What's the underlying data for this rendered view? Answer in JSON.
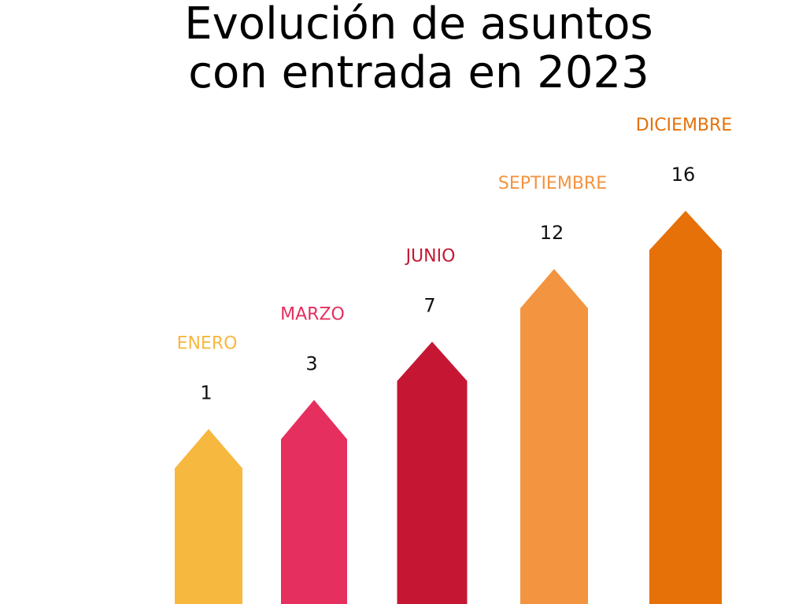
{
  "chart_data": {
    "type": "bar",
    "title": [
      "Evolución de asuntos",
      "con entrada en 2023"
    ],
    "categories": [
      "ENERO",
      "MARZO",
      "JUNIO",
      "SEPTIEMBRE",
      "DICIEMBRE"
    ],
    "values": [
      1,
      3,
      7,
      12,
      16
    ],
    "colors": [
      "#F7B840",
      "#E52F5E",
      "#C51733",
      "#F39440",
      "#E57108"
    ]
  }
}
